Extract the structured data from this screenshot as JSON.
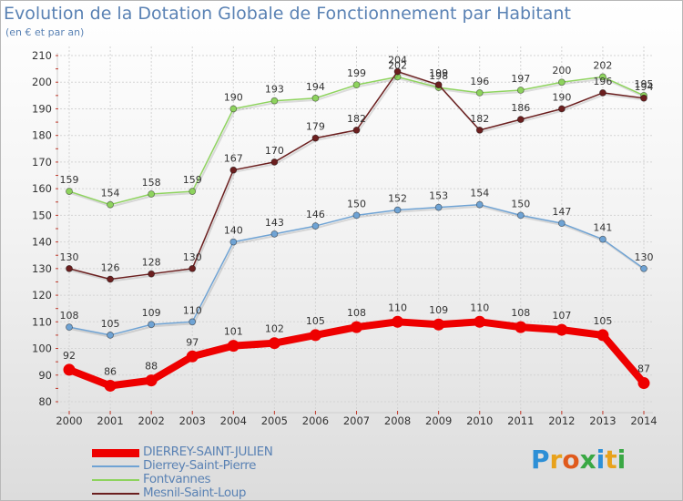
{
  "title": "Evolution de la Dotation Globale de Fonctionnement par Habitant",
  "subtitle": "(en € et par an)",
  "logo": {
    "letters": [
      "P",
      "r",
      "o",
      "x",
      "i",
      "t",
      "i"
    ],
    "colors": [
      "#2d8fd6",
      "#e8a21b",
      "#e05a1c",
      "#3aa844",
      "#2d8fd6",
      "#e8a21b",
      "#3aa844"
    ]
  },
  "chart_data": {
    "type": "line",
    "title": "Evolution de la Dotation Globale de Fonctionnement par Habitant",
    "xlabel": "",
    "ylabel": "(en € et par an)",
    "ylim": [
      80,
      210
    ],
    "yticks": [
      "80",
      "90",
      "100",
      "110",
      "120",
      "130",
      "140",
      "150",
      "160",
      "170",
      "180",
      "190",
      "200",
      "210"
    ],
    "x": [
      "2000",
      "2001",
      "2002",
      "2003",
      "2004",
      "2005",
      "2006",
      "2007",
      "2008",
      "2009",
      "2010",
      "2011",
      "2012",
      "2013",
      "2014"
    ],
    "series": [
      {
        "name": "Fontvannes",
        "color": "#8ed35e",
        "values": [
          159,
          154,
          158,
          159,
          190,
          193,
          194,
          199,
          202,
          198,
          196,
          197,
          200,
          202,
          195
        ]
      },
      {
        "name": "Mesnil-Saint-Loup",
        "color": "#6b1f1f",
        "values": [
          130,
          126,
          128,
          130,
          167,
          170,
          179,
          182,
          204,
          199,
          182,
          186,
          190,
          196,
          194
        ]
      },
      {
        "name": "Dierrey-Saint-Pierre",
        "color": "#6fa3d4",
        "values": [
          108,
          105,
          109,
          110,
          140,
          143,
          146,
          150,
          152,
          153,
          154,
          150,
          147,
          141,
          130
        ]
      },
      {
        "name": "DIERREY-SAINT-JULIEN",
        "color": "#ee0000",
        "values": [
          92,
          86,
          88,
          97,
          101,
          102,
          105,
          108,
          110,
          109,
          110,
          108,
          107,
          105,
          87
        ]
      }
    ],
    "legend": [
      "DIERREY-SAINT-JULIEN",
      "Dierrey-Saint-Pierre",
      "Fontvannes",
      "Mesnil-Saint-Loup"
    ]
  }
}
